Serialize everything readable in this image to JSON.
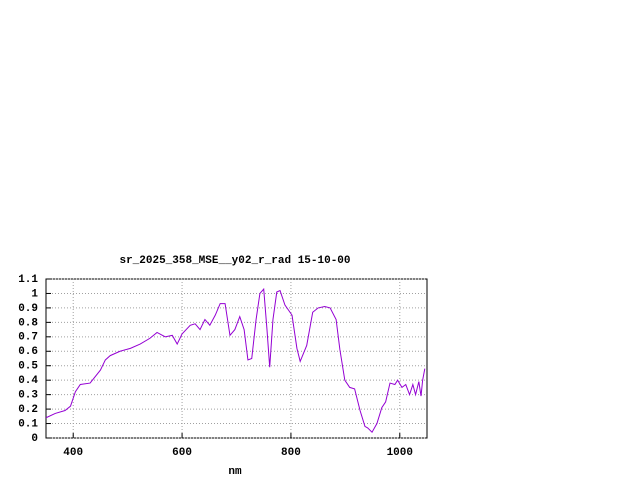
{
  "chart_data": {
    "type": "line",
    "title": "sr_2025_358_MSE__y02_r_rad 15-10-00",
    "x_label": "nm",
    "x": [
      350,
      367,
      385,
      395,
      404,
      413,
      431,
      450,
      459,
      468,
      486,
      505,
      523,
      541,
      554,
      569,
      582,
      591,
      600,
      615,
      624,
      633,
      642,
      651,
      661,
      670,
      679,
      688,
      697,
      706,
      714,
      721,
      728,
      736,
      743,
      750,
      756,
      761,
      767,
      774,
      780,
      789,
      802,
      811,
      817,
      829,
      840,
      850,
      862,
      872,
      883,
      890,
      899,
      908,
      917,
      927,
      936,
      941,
      949,
      958,
      967,
      974,
      982,
      991,
      996,
      1004,
      1011,
      1018,
      1024,
      1029,
      1035,
      1039,
      1042,
      1046
    ],
    "series": [
      {
        "color": "#9400d3",
        "values": [
          0.14,
          0.17,
          0.19,
          0.22,
          0.32,
          0.37,
          0.38,
          0.47,
          0.54,
          0.57,
          0.6,
          0.62,
          0.65,
          0.69,
          0.73,
          0.7,
          0.71,
          0.65,
          0.72,
          0.78,
          0.79,
          0.75,
          0.82,
          0.78,
          0.85,
          0.93,
          0.93,
          0.71,
          0.75,
          0.84,
          0.75,
          0.54,
          0.55,
          0.82,
          1.0,
          1.03,
          0.75,
          0.49,
          0.82,
          1.01,
          1.02,
          0.92,
          0.85,
          0.62,
          0.53,
          0.64,
          0.87,
          0.9,
          0.91,
          0.9,
          0.82,
          0.61,
          0.4,
          0.35,
          0.34,
          0.19,
          0.08,
          0.07,
          0.04,
          0.1,
          0.21,
          0.25,
          0.38,
          0.37,
          0.4,
          0.35,
          0.37,
          0.3,
          0.37,
          0.3,
          0.39,
          0.29,
          0.4,
          0.48
        ]
      }
    ],
    "xlim": [
      350,
      1050
    ],
    "xticks": [
      400,
      600,
      800,
      1000
    ],
    "ylim": [
      0,
      1.1
    ],
    "yticks": [
      0,
      0.1,
      0.2,
      0.3,
      0.4,
      0.5,
      0.6,
      0.7,
      0.8,
      0.9,
      1,
      1.1
    ],
    "grid": true
  }
}
